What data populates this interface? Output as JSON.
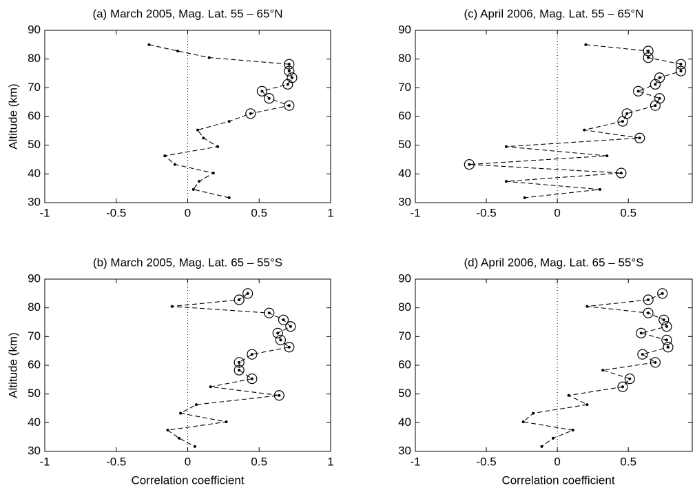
{
  "chart_data": [
    {
      "type": "line",
      "title": "(a) March 2005, Mag. Lat. 55 – 65°N",
      "ylabel": "Altitude (km)",
      "color": "#000000",
      "x": [
        -0.27,
        -0.07,
        0.15,
        0.71,
        0.71,
        0.73,
        0.7,
        0.52,
        0.57,
        0.71,
        0.44,
        0.29,
        0.07,
        0.11,
        0.21,
        -0.16,
        -0.09,
        0.18,
        0.08,
        0.04,
        0.29
      ],
      "y": [
        85,
        82.8,
        80.5,
        78.2,
        75.8,
        73.5,
        71.2,
        68.8,
        66.3,
        63.8,
        61,
        58.3,
        55.3,
        52.5,
        49.5,
        46.3,
        43.3,
        40.3,
        37.4,
        34.6,
        31.7
      ],
      "circled": [
        false,
        false,
        false,
        true,
        true,
        true,
        true,
        true,
        true,
        true,
        true,
        false,
        false,
        false,
        false,
        false,
        false,
        false,
        false,
        false,
        false
      ],
      "xlim": [
        -1,
        1
      ],
      "ylim": [
        30,
        90
      ],
      "xticks": [
        -1,
        -0.5,
        0,
        0.5,
        1
      ],
      "yticks": [
        30,
        40,
        50,
        60,
        70,
        80,
        90
      ]
    },
    {
      "type": "line",
      "title": "(c) April 2006, Mag. Lat. 55 – 65°N",
      "color": "#000000",
      "x": [
        0.2,
        0.64,
        0.64,
        0.87,
        0.87,
        0.72,
        0.69,
        0.57,
        0.72,
        0.69,
        0.49,
        0.46,
        0.19,
        0.58,
        -0.36,
        0.35,
        -0.62,
        0.45,
        -0.36,
        0.3,
        -0.23
      ],
      "y": [
        85,
        82.8,
        80.5,
        78.2,
        75.8,
        73.5,
        71.2,
        68.8,
        66.3,
        63.8,
        61,
        58.3,
        55.3,
        52.5,
        49.5,
        46.3,
        43.3,
        40.3,
        37.4,
        34.6,
        31.7
      ],
      "circled": [
        false,
        true,
        true,
        true,
        true,
        true,
        true,
        true,
        true,
        true,
        true,
        true,
        false,
        true,
        false,
        false,
        true,
        true,
        false,
        false,
        false
      ],
      "xlim": [
        -1,
        0.95
      ],
      "ylim": [
        30,
        90
      ],
      "xticks": [
        -1,
        -0.5,
        0,
        0.5
      ],
      "yticks": [
        30,
        40,
        50,
        60,
        70,
        80,
        90
      ]
    },
    {
      "type": "line",
      "title": "(b) March 2005, Mag. Lat. 65 – 55°S",
      "ylabel": "Altitude (km)",
      "xlabel": "Correlation coefficient",
      "color": "#000000",
      "x": [
        0.42,
        0.36,
        -0.11,
        0.57,
        0.67,
        0.72,
        0.63,
        0.65,
        0.71,
        0.45,
        0.36,
        0.36,
        0.45,
        0.16,
        0.64,
        0.06,
        -0.05,
        0.27,
        -0.14,
        -0.06,
        0.05
      ],
      "y": [
        85,
        82.8,
        80.5,
        78.2,
        75.8,
        73.5,
        71.2,
        68.8,
        66.3,
        63.8,
        61,
        58.3,
        55.3,
        52.5,
        49.5,
        46.3,
        43.3,
        40.3,
        37.4,
        34.6,
        31.7
      ],
      "circled": [
        true,
        true,
        false,
        true,
        true,
        true,
        true,
        true,
        true,
        true,
        true,
        true,
        true,
        false,
        true,
        false,
        false,
        false,
        false,
        false,
        false
      ],
      "xlim": [
        -1,
        1
      ],
      "ylim": [
        30,
        90
      ],
      "xticks": [
        -1,
        -0.5,
        0,
        0.5,
        1
      ],
      "yticks": [
        30,
        40,
        50,
        60,
        70,
        80,
        90
      ]
    },
    {
      "type": "line",
      "title": "(d) April 2006, Mag. Lat. 65 – 55°S",
      "xlabel": "Correlation coefficient",
      "color": "#000000",
      "x": [
        0.74,
        0.64,
        0.21,
        0.64,
        0.75,
        0.77,
        0.59,
        0.77,
        0.78,
        0.6,
        0.69,
        0.32,
        0.51,
        0.46,
        0.08,
        0.21,
        -0.17,
        -0.24,
        0.11,
        -0.03,
        -0.11
      ],
      "y": [
        85,
        82.8,
        80.5,
        78.2,
        75.8,
        73.5,
        71.2,
        68.8,
        66.3,
        63.8,
        61,
        58.3,
        55.3,
        52.5,
        49.5,
        46.3,
        43.3,
        40.3,
        37.4,
        34.6,
        31.7
      ],
      "circled": [
        true,
        true,
        false,
        true,
        true,
        true,
        true,
        true,
        true,
        true,
        true,
        false,
        true,
        true,
        false,
        false,
        false,
        false,
        false,
        false,
        false
      ],
      "xlim": [
        -1,
        0.95
      ],
      "ylim": [
        30,
        90
      ],
      "xticks": [
        -1,
        -0.5,
        0,
        0.5
      ],
      "yticks": [
        30,
        40,
        50,
        60,
        70,
        80,
        90
      ]
    }
  ]
}
